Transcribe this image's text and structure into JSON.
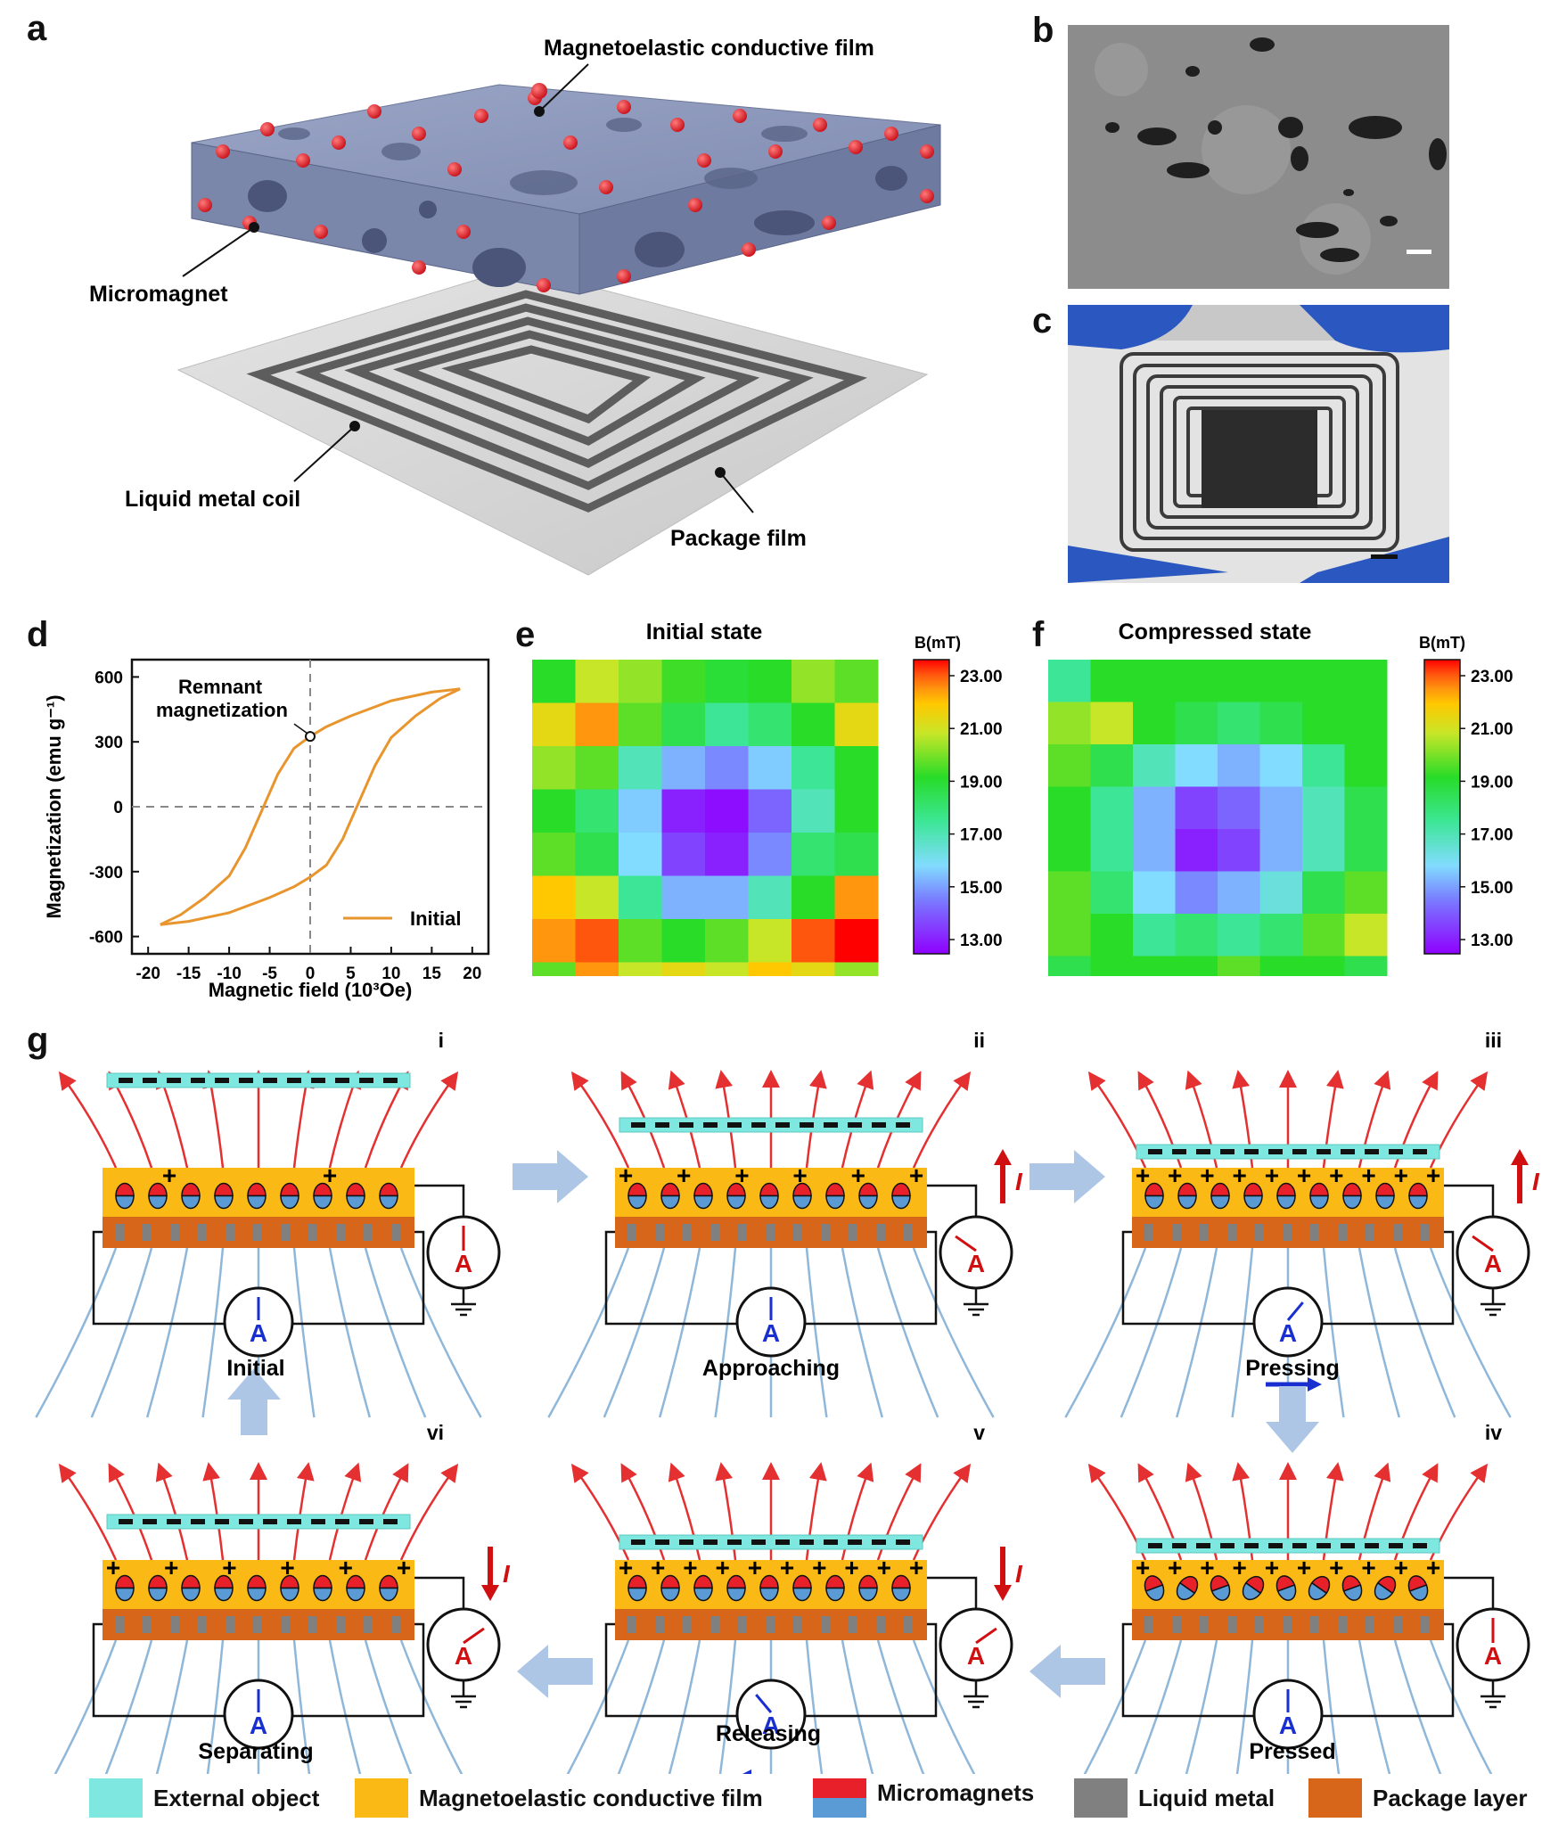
{
  "panel_letters": {
    "a": "a",
    "b": "b",
    "c": "c",
    "d": "d",
    "e": "e",
    "f": "f",
    "g": "g"
  },
  "panel_a": {
    "labels": {
      "film": "Magnetoelastic conductive film",
      "micromagnet": "Micromagnet",
      "coil": "Liquid metal coil",
      "package": "Package film"
    }
  },
  "chart_data": [
    {
      "type": "line",
      "panel": "d",
      "xlabel": "Magnetic field (10³Oe)",
      "ylabel": "Magnetization (emu g⁻¹)",
      "xlim": [
        -22,
        22
      ],
      "ylim": [
        -680,
        680
      ],
      "xticks": [
        -20,
        -15,
        -10,
        -5,
        0,
        5,
        10,
        15,
        20
      ],
      "yticks": [
        -600,
        -300,
        0,
        300,
        600
      ],
      "annotation": "Remnant magnetization",
      "remnant_point": [
        0,
        325
      ],
      "legend": "Initial",
      "series": [
        {
          "name": "Initial",
          "upper_branch": [
            [
              18.5,
              545
            ],
            [
              15,
              530
            ],
            [
              10,
              490
            ],
            [
              5,
              420
            ],
            [
              2,
              370
            ],
            [
              0,
              325
            ],
            [
              -2,
              270
            ],
            [
              -4,
              150
            ],
            [
              -6,
              -20
            ],
            [
              -8,
              -190
            ],
            [
              -10,
              -320
            ],
            [
              -13,
              -420
            ],
            [
              -16,
              -500
            ],
            [
              -18.5,
              -545
            ]
          ],
          "lower_branch": [
            [
              -18.5,
              -545
            ],
            [
              -15,
              -530
            ],
            [
              -10,
              -490
            ],
            [
              -5,
              -420
            ],
            [
              -2,
              -370
            ],
            [
              0,
              -325
            ],
            [
              2,
              -270
            ],
            [
              4,
              -150
            ],
            [
              6,
              20
            ],
            [
              8,
              190
            ],
            [
              10,
              320
            ],
            [
              13,
              420
            ],
            [
              16,
              500
            ],
            [
              18.5,
              545
            ]
          ]
        }
      ]
    },
    {
      "type": "heatmap",
      "panel": "e",
      "title": "Initial state",
      "colorbar_label": "B(mT)",
      "colorbar_ticks": [
        "23.00",
        "21.00",
        "19.00",
        "17.00",
        "15.00",
        "13.00"
      ],
      "range": [
        13,
        23
      ],
      "values": [
        [
          19.0,
          20.5,
          20.0,
          19.2,
          18.8,
          19.0,
          20.0,
          19.5
        ],
        [
          21.0,
          22.0,
          19.5,
          18.5,
          17.5,
          18.0,
          19.0,
          21.0
        ],
        [
          20.0,
          19.5,
          17.0,
          15.5,
          15.0,
          15.8,
          17.5,
          19.0
        ],
        [
          19.0,
          18.0,
          15.8,
          13.5,
          13.2,
          14.5,
          17.0,
          19.0
        ],
        [
          19.5,
          18.5,
          16.0,
          14.0,
          13.5,
          15.0,
          18.0,
          18.5
        ],
        [
          21.5,
          20.5,
          17.5,
          15.5,
          15.5,
          17.0,
          19.0,
          22.0
        ],
        [
          22.0,
          22.5,
          19.5,
          19.0,
          19.5,
          20.5,
          22.5,
          23.0
        ],
        [
          19.5,
          22.0,
          20.5,
          21.0,
          20.5,
          21.5,
          21.0,
          20.0
        ]
      ]
    },
    {
      "type": "heatmap",
      "panel": "f",
      "title": "Compressed state",
      "colorbar_label": "B(mT)",
      "colorbar_ticks": [
        "23.00",
        "21.00",
        "19.00",
        "17.00",
        "15.00",
        "13.00"
      ],
      "range": [
        13,
        23
      ],
      "values": [
        [
          17.5,
          19.0,
          19.0,
          19.0,
          19.0,
          19.0,
          19.0,
          19.0
        ],
        [
          20.0,
          20.5,
          19.0,
          18.5,
          18.0,
          18.5,
          19.0,
          19.0
        ],
        [
          19.5,
          18.5,
          17.0,
          16.0,
          15.5,
          16.0,
          17.5,
          19.0
        ],
        [
          19.0,
          17.5,
          15.5,
          14.0,
          14.5,
          15.5,
          17.0,
          18.5
        ],
        [
          19.0,
          17.5,
          15.5,
          13.5,
          14.0,
          15.5,
          17.0,
          18.5
        ],
        [
          19.5,
          18.0,
          16.0,
          15.0,
          15.5,
          16.5,
          18.5,
          19.5
        ],
        [
          19.5,
          19.0,
          17.5,
          18.0,
          17.5,
          18.0,
          19.5,
          20.5
        ],
        [
          18.5,
          19.0,
          19.0,
          19.0,
          19.5,
          19.0,
          19.0,
          18.5
        ]
      ]
    }
  ],
  "panel_g": {
    "stages": [
      {
        "roman": "i",
        "name": "Initial"
      },
      {
        "roman": "ii",
        "name": "Approaching"
      },
      {
        "roman": "iii",
        "name": "Pressing"
      },
      {
        "roman": "iv",
        "name": "Pressed"
      },
      {
        "roman": "v",
        "name": "Releasing"
      },
      {
        "roman": "vi",
        "name": "Separating"
      }
    ],
    "meter_label": "A",
    "current_label": "I"
  },
  "legend": [
    {
      "label": "External object",
      "color": "#7ee8e0"
    },
    {
      "label": "Magnetoelastic conductive film",
      "color": "#fbb916"
    },
    {
      "label": "Micromagnets",
      "color": "#e8202a"
    },
    {
      "label": "Liquid metal",
      "color": "#808080"
    },
    {
      "label": "Package layer",
      "color": "#d8661a"
    }
  ],
  "colors": {
    "orange_curve": "#e8952e",
    "external": "#7ee8e0",
    "film": "#fbb916",
    "package": "#d8661a",
    "liquid_metal": "#808080",
    "magnet_red": "#e8202a",
    "magnet_blue": "#5b9bd5",
    "field_line_red": "#e43030",
    "field_line_blue": "#8fb7d9",
    "arrow_blue": "#aec6e6"
  }
}
